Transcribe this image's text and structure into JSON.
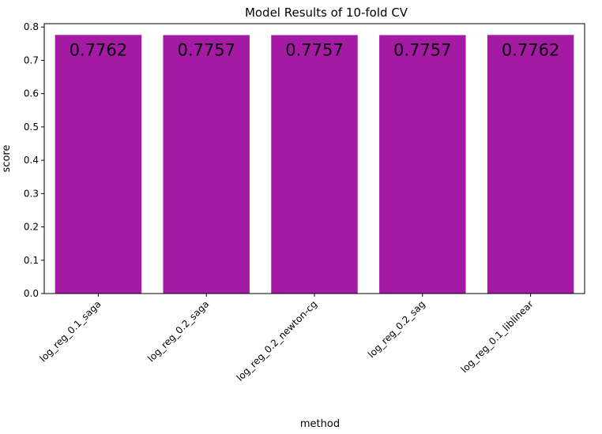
{
  "chart_data": {
    "type": "bar",
    "title": "Model Results of 10-fold CV",
    "xlabel": "method",
    "ylabel": "score",
    "categories": [
      "log_reg_0.1_saga",
      "log_reg_0.2_saga",
      "log_reg_0.2_newton-cg",
      "log_reg_0.2_sag",
      "log_reg_0.1_liblinear"
    ],
    "values": [
      0.7762,
      0.7757,
      0.7757,
      0.7757,
      0.7762
    ],
    "data_labels": [
      "0.7762",
      "0.7757",
      "0.7757",
      "0.7757",
      "0.7762"
    ],
    "ylim": [
      0,
      0.81
    ],
    "yticks": [
      0.0,
      0.1,
      0.2,
      0.3,
      0.4,
      0.5,
      0.6,
      0.7,
      0.8
    ],
    "ytick_labels": [
      "0.0",
      "0.1",
      "0.2",
      "0.3",
      "0.4",
      "0.5",
      "0.6",
      "0.7",
      "0.8"
    ],
    "bar_color": "#a51aa5",
    "grid": false,
    "legend": "none"
  }
}
